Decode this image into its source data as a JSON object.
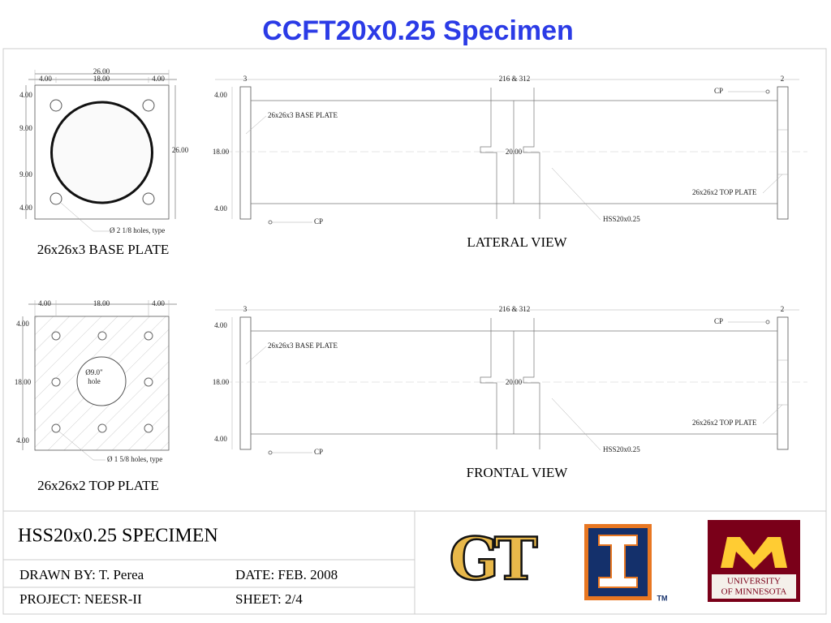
{
  "header": {
    "title": "CCFT20x0.25 Specimen"
  },
  "base_plate": {
    "overall_top": "26.00",
    "top_dims": [
      "4.00",
      "18.00",
      "4.00"
    ],
    "left_dims": [
      "4.00",
      "9.00",
      "9.00",
      "4.00"
    ],
    "overall_right": "26.00",
    "hole_note": "Ø 2 1/8 holes, type",
    "caption": "26x26x3 BASE PLATE"
  },
  "top_plate": {
    "top_dims": [
      "4.00",
      "18.00",
      "4.00"
    ],
    "left_dims": [
      "4.00",
      "18.00",
      "4.00"
    ],
    "center_hole": [
      "Ø9.0\"",
      "hole"
    ],
    "hole_note": "Ø 1 5/8 holes, type",
    "caption": "26x26x2 TOP PLATE"
  },
  "views": [
    {
      "left_gap": "3",
      "length": "216 & 312",
      "right_gap": "2",
      "left_dims": [
        "4.00",
        "18.00",
        "4.00"
      ],
      "diameter": "20.00",
      "labels": {
        "cp_top": "CP",
        "base_plate": "26x26x3 BASE PLATE",
        "top_plate": "26x26x2 TOP PLATE",
        "cp_bottom": "CP",
        "tube": "HSS20x0.25"
      },
      "caption": "LATERAL VIEW"
    },
    {
      "left_gap": "3",
      "length": "216 & 312",
      "right_gap": "2",
      "left_dims": [
        "4.00",
        "18.00",
        "4.00"
      ],
      "diameter": "20.00",
      "labels": {
        "cp_top": "CP",
        "base_plate": "26x26x3 BASE PLATE",
        "top_plate": "26x26x2 TOP PLATE",
        "cp_bottom": "CP",
        "tube": "HSS20x0.25"
      },
      "caption": "FRONTAL VIEW"
    }
  ],
  "title_block": {
    "title": "HSS20x0.25 SPECIMEN",
    "drawn_by": "DRAWN BY: T. Perea",
    "date": "DATE: FEB. 2008",
    "project": "PROJECT: NEESR-II",
    "sheet": "SHEET: 2/4"
  },
  "logos": {
    "gt": "GT",
    "trademark": "TM",
    "minnesota": [
      "UNIVERSITY",
      "OF MINNESOTA"
    ]
  }
}
